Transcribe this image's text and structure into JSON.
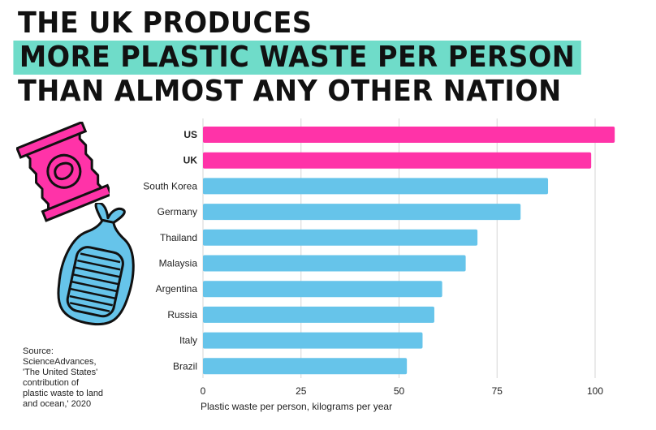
{
  "headline": {
    "line1": "THE UK PRODUCES",
    "line2": "MORE PLASTIC WASTE PER PERSON",
    "line3": "THAN ALMOST ANY OTHER NATION"
  },
  "source": {
    "lines": [
      "Source:",
      "ScienceAdvances,",
      "'The United States'",
      "contribution of",
      "plastic waste to land",
      "and ocean,' 2020"
    ]
  },
  "colors": {
    "highlight": "#6fdcc9",
    "bar_highlight": "#ff33a8",
    "bar_default": "#66c4ea",
    "grid": "#d6d6d6",
    "illustration_pink": "#ff33a8",
    "illustration_blue": "#66c4ea"
  },
  "illustrations": [
    "crisp-packet-icon",
    "plastic-bag-icon"
  ],
  "chart_data": {
    "type": "bar",
    "orientation": "horizontal",
    "categories": [
      "US",
      "UK",
      "South Korea",
      "Germany",
      "Thailand",
      "Malaysia",
      "Argentina",
      "Russia",
      "Italy",
      "Brazil"
    ],
    "values": [
      105,
      99,
      88,
      81,
      70,
      67,
      61,
      59,
      56,
      52
    ],
    "highlighted": [
      "US",
      "UK"
    ],
    "xlabel": "Plastic waste per person, kilograms per year",
    "xlim": [
      0,
      105
    ],
    "xticks": [
      0,
      25,
      50,
      75,
      100
    ],
    "grid": true
  }
}
